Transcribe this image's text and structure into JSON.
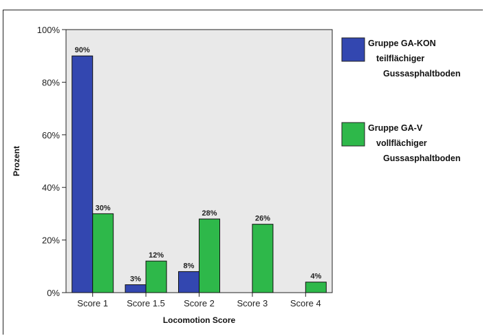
{
  "chart_data": {
    "type": "bar",
    "categories": [
      "Score 1",
      "Score 1.5",
      "Score 2",
      "Score 3",
      "Score 4"
    ],
    "series": [
      {
        "name_lines": [
          "Gruppe GA-KON",
          "teilflächiger",
          "Gussasphaltboden"
        ],
        "color": "#3347b0",
        "values": [
          90,
          3,
          8,
          null,
          null
        ],
        "labels": [
          "90%",
          "3%",
          "8%",
          "",
          ""
        ]
      },
      {
        "name_lines": [
          "Gruppe GA-V",
          "vollflächiger",
          "Gussasphaltboden"
        ],
        "color": "#2eb84a",
        "values": [
          30,
          12,
          28,
          26,
          4
        ],
        "labels": [
          "30%",
          "12%",
          "28%",
          "26%",
          "4%"
        ]
      }
    ],
    "xlabel": "Locomotion Score",
    "ylabel": "Prozent",
    "ylim": [
      0,
      100
    ],
    "yticks": [
      0,
      20,
      40,
      60,
      80,
      100
    ],
    "ytick_labels": [
      "0%",
      "20%",
      "40%",
      "60%",
      "80%",
      "100%"
    ],
    "legend_position": "right",
    "plot_background": "#e9e9e9"
  }
}
